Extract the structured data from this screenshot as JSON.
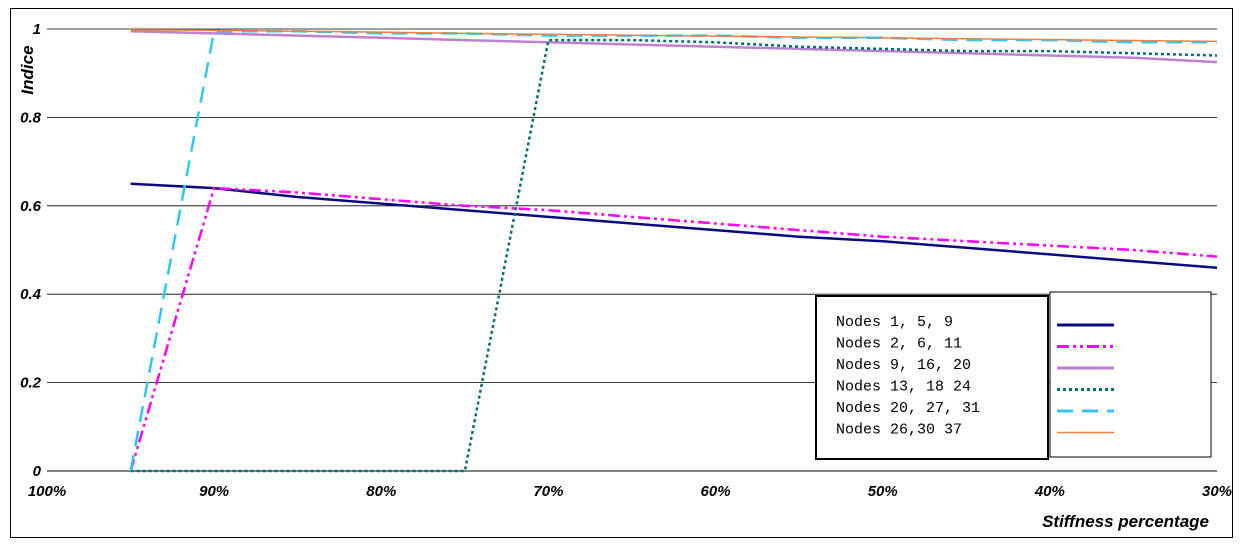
{
  "chart_data": {
    "type": "line",
    "xlabel": "Stiffness percentage",
    "ylabel": "Indice",
    "x_ticks": [
      "100%",
      "90%",
      "80%",
      "70%",
      "60%",
      "50%",
      "40%",
      "30%"
    ],
    "y_ticks": [
      "0",
      "0.2",
      "0.4",
      "0.6",
      "0.8",
      "1"
    ],
    "xlim": [
      100,
      30
    ],
    "ylim": [
      0,
      1
    ],
    "grid": "horizontal",
    "legend_position": "bottom-right",
    "series": [
      {
        "name": "Nodes 1, 5, 9",
        "color": "#0a0a80",
        "style": "solid",
        "x": [
          95,
          90,
          85,
          80,
          75,
          70,
          65,
          60,
          55,
          50,
          45,
          40,
          35,
          30
        ],
        "y": [
          0.65,
          0.64,
          0.62,
          0.605,
          0.59,
          0.575,
          0.56,
          0.545,
          0.53,
          0.52,
          0.505,
          0.49,
          0.475,
          0.46
        ]
      },
      {
        "name": "Nodes 2, 6, 11",
        "color": "#ff00ff",
        "style": "dashdot",
        "x": [
          95,
          90,
          85,
          80,
          75,
          70,
          65,
          60,
          55,
          50,
          45,
          40,
          35,
          30
        ],
        "y": [
          0,
          0.64,
          0.63,
          0.615,
          0.6,
          0.59,
          0.575,
          0.56,
          0.545,
          0.53,
          0.52,
          0.51,
          0.5,
          0.485
        ]
      },
      {
        "name": "Nodes 9, 16, 20",
        "color": "#c080d0",
        "style": "solid",
        "x": [
          95,
          90,
          85,
          80,
          75,
          70,
          65,
          60,
          55,
          50,
          45,
          40,
          35,
          30
        ],
        "y": [
          0.995,
          0.99,
          0.985,
          0.98,
          0.975,
          0.97,
          0.965,
          0.96,
          0.955,
          0.95,
          0.945,
          0.94,
          0.935,
          0.925
        ]
      },
      {
        "name": "Nodes 13, 18 24",
        "color": "#007070",
        "style": "dotted",
        "x": [
          95,
          90,
          85,
          80,
          75,
          70,
          65,
          60,
          55,
          50,
          45,
          40,
          35,
          30
        ],
        "y": [
          0,
          0,
          0,
          0,
          0,
          0.975,
          0.975,
          0.97,
          0.96,
          0.955,
          0.95,
          0.95,
          0.945,
          0.94
        ]
      },
      {
        "name": "Nodes 20, 27, 31",
        "color": "#30c8f0",
        "style": "dashed",
        "x": [
          95,
          90,
          85,
          80,
          75,
          70,
          65,
          60,
          55,
          50,
          45,
          40,
          35,
          30
        ],
        "y": [
          0,
          0.995,
          0.995,
          0.99,
          0.99,
          0.985,
          0.985,
          0.985,
          0.98,
          0.98,
          0.975,
          0.975,
          0.97,
          0.97
        ]
      },
      {
        "name": "Nodes 26,30 37",
        "color": "#f08040",
        "style": "solid",
        "x": [
          95,
          90,
          85,
          80,
          75,
          70,
          65,
          60,
          55,
          50,
          45,
          40,
          35,
          30
        ],
        "y": [
          0.998,
          0.997,
          0.995,
          0.993,
          0.99,
          0.988,
          0.986,
          0.984,
          0.982,
          0.98,
          0.978,
          0.976,
          0.974,
          0.972
        ]
      }
    ]
  }
}
